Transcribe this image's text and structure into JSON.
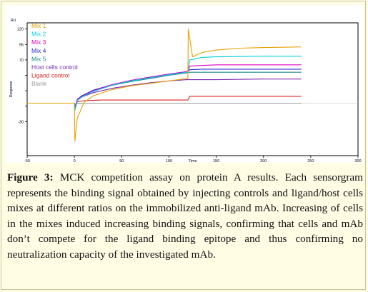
{
  "caption": {
    "figure_label": "Figure 3:",
    "text": "MCK competition assay on protein A results.  Each sensorgram represents the binding signal obtained by injecting controls and ligand/host cells mixes at different ratios on the immobilized anti-ligand mAb. Increasing of cells in the mixes induced increasing binding signals, confirming that cells and mAb don’t compete for the ligand binding epitope and thus confirming no neutralization capacity of the investigated mAb."
  },
  "chart_data": {
    "type": "line",
    "xlabel": "Time",
    "ylabel": "Response",
    "yunit": "RU",
    "xlim": [
      -50,
      300
    ],
    "ylim": [
      -85,
      130
    ],
    "xticks": [
      -50,
      0,
      50,
      100,
      150,
      200,
      250,
      300
    ],
    "yticks": [
      120,
      95,
      70,
      45,
      20,
      -5,
      -30
    ],
    "ytick_labels": [
      "120",
      "95",
      "70",
      "",
      "",
      "",
      "-30"
    ],
    "series": [
      {
        "name": "Mix 1",
        "color": "#e6a000",
        "x": [
          -50,
          0,
          0.5,
          3,
          10,
          20,
          40,
          60,
          80,
          100,
          119,
          120,
          120.5,
          125,
          135,
          150,
          175,
          200,
          240
        ],
        "y": [
          0,
          0,
          -62,
          -25,
          1,
          12,
          22,
          28,
          32,
          36,
          40,
          40,
          120,
          75,
          82,
          86,
          89,
          90,
          91
        ]
      },
      {
        "name": "Mix 2",
        "color": "#00d0e0",
        "x": [
          -50,
          0,
          0.5,
          3,
          8,
          20,
          40,
          60,
          80,
          100,
          119,
          120,
          122,
          135,
          150,
          200,
          240
        ],
        "y": [
          0,
          0,
          -12,
          4,
          10,
          19,
          29,
          36,
          41,
          46,
          50,
          50,
          70,
          74,
          75,
          76,
          76
        ]
      },
      {
        "name": "Mix 3",
        "color": "#e000c8",
        "x": [
          -50,
          0,
          0.5,
          3,
          8,
          20,
          40,
          60,
          80,
          100,
          119,
          120,
          122,
          135,
          150,
          200,
          240
        ],
        "y": [
          0,
          0,
          -10,
          5,
          11,
          20,
          30,
          37,
          42,
          47,
          51,
          51,
          60,
          61,
          62,
          62,
          62
        ]
      },
      {
        "name": "Mix 4",
        "color": "#2a2ad0",
        "x": [
          -50,
          0,
          0.5,
          3,
          8,
          20,
          40,
          60,
          80,
          100,
          119,
          120,
          122,
          135,
          150,
          200,
          240
        ],
        "y": [
          0,
          0,
          -8,
          6,
          12,
          21,
          30,
          37,
          42,
          47,
          51,
          51,
          54,
          55,
          55,
          55,
          55
        ]
      },
      {
        "name": "Mix 5",
        "color": "#1a8a8a",
        "x": [
          -50,
          0,
          0.5,
          3,
          8,
          20,
          40,
          60,
          80,
          100,
          119,
          120,
          122,
          135,
          150,
          200,
          240
        ],
        "y": [
          0,
          0,
          -8,
          6,
          12,
          20,
          29,
          35,
          40,
          45,
          49,
          49,
          50,
          50,
          50,
          50,
          50
        ]
      },
      {
        "name": "Host cells control",
        "color": "#7a2ab0",
        "x": [
          -50,
          0,
          0.5,
          3,
          8,
          20,
          40,
          60,
          80,
          100,
          119,
          120,
          122,
          135,
          150,
          200,
          240
        ],
        "y": [
          0,
          0,
          -8,
          5,
          10,
          17,
          24,
          29,
          33,
          36,
          38,
          38,
          38,
          38,
          38,
          39,
          39
        ]
      },
      {
        "name": "Ligand control",
        "color": "#e02020",
        "x": [
          -50,
          0,
          0.5,
          3,
          10,
          30,
          60,
          90,
          119,
          120,
          122,
          150,
          200,
          240
        ],
        "y": [
          0,
          0,
          -5,
          2,
          4,
          5,
          5,
          5,
          5,
          5,
          11,
          11,
          11,
          11
        ]
      },
      {
        "name": "Blank",
        "color": "#9a9a9a",
        "x": [
          -50,
          0,
          0.5,
          3,
          10,
          60,
          119,
          120,
          150,
          200,
          240
        ],
        "y": [
          0,
          0,
          -3,
          -1,
          0,
          0,
          0,
          0,
          0,
          0,
          0
        ]
      }
    ]
  }
}
